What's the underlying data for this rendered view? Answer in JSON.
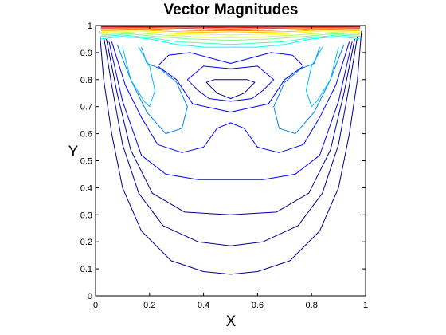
{
  "chart_data": {
    "type": "contour",
    "title": "Vector Magnitudes",
    "xlabel": "X",
    "ylabel": "Y",
    "xlim": [
      0,
      1
    ],
    "ylim": [
      0,
      1
    ],
    "x_ticks": [
      "0",
      "0.2",
      "0.4",
      "0.6",
      "0.8",
      "1"
    ],
    "y_ticks": [
      "0",
      "0.1",
      "0.2",
      "0.3",
      "0.4",
      "0.5",
      "0.6",
      "0.7",
      "0.8",
      "0.9",
      "1"
    ],
    "colormap": "jet",
    "colors": {
      "dark_blue": "#00008f",
      "blue": "#0000ff",
      "azure": "#0080ff",
      "cyan": "#00ffff",
      "green": "#80ff80",
      "yellow": "#ffff00",
      "orange": "#ff8000",
      "red": "#ff0000",
      "dark_red": "#800000"
    },
    "contours": [
      {
        "color": "#00008f",
        "points": [
          [
            0.015,
            0.98
          ],
          [
            0.03,
            0.8
          ],
          [
            0.06,
            0.6
          ],
          [
            0.1,
            0.4
          ],
          [
            0.17,
            0.24
          ],
          [
            0.28,
            0.13
          ],
          [
            0.4,
            0.09
          ],
          [
            0.5,
            0.08
          ],
          [
            0.6,
            0.09
          ],
          [
            0.72,
            0.13
          ],
          [
            0.83,
            0.24
          ],
          [
            0.9,
            0.4
          ],
          [
            0.94,
            0.6
          ],
          [
            0.97,
            0.8
          ],
          [
            0.985,
            0.98
          ]
        ]
      },
      {
        "color": "#00008f",
        "points": [
          [
            0.03,
            0.96
          ],
          [
            0.06,
            0.78
          ],
          [
            0.1,
            0.56
          ],
          [
            0.16,
            0.38
          ],
          [
            0.25,
            0.26
          ],
          [
            0.38,
            0.2
          ],
          [
            0.5,
            0.185
          ],
          [
            0.62,
            0.2
          ],
          [
            0.75,
            0.26
          ],
          [
            0.84,
            0.38
          ],
          [
            0.9,
            0.56
          ],
          [
            0.94,
            0.78
          ],
          [
            0.97,
            0.96
          ]
        ]
      },
      {
        "color": "#00008f",
        "points": [
          [
            0.04,
            0.95
          ],
          [
            0.08,
            0.75
          ],
          [
            0.13,
            0.54
          ],
          [
            0.21,
            0.38
          ],
          [
            0.33,
            0.31
          ],
          [
            0.5,
            0.3
          ],
          [
            0.67,
            0.31
          ],
          [
            0.79,
            0.38
          ],
          [
            0.87,
            0.54
          ],
          [
            0.92,
            0.75
          ],
          [
            0.96,
            0.95
          ]
        ]
      },
      {
        "color": "#0000ff",
        "points": [
          [
            0.05,
            0.94
          ],
          [
            0.1,
            0.72
          ],
          [
            0.17,
            0.52
          ],
          [
            0.26,
            0.45
          ],
          [
            0.38,
            0.43
          ],
          [
            0.5,
            0.43
          ],
          [
            0.62,
            0.43
          ],
          [
            0.74,
            0.45
          ],
          [
            0.83,
            0.52
          ],
          [
            0.9,
            0.72
          ],
          [
            0.95,
            0.94
          ]
        ]
      },
      {
        "color": "#0000ff",
        "points": [
          [
            0.06,
            0.94
          ],
          [
            0.11,
            0.78
          ],
          [
            0.17,
            0.66
          ],
          [
            0.23,
            0.56
          ],
          [
            0.32,
            0.53
          ],
          [
            0.4,
            0.55
          ],
          [
            0.45,
            0.62
          ],
          [
            0.5,
            0.64
          ],
          [
            0.55,
            0.62
          ],
          [
            0.6,
            0.55
          ],
          [
            0.68,
            0.53
          ],
          [
            0.77,
            0.56
          ],
          [
            0.83,
            0.66
          ],
          [
            0.89,
            0.78
          ],
          [
            0.94,
            0.94
          ]
        ]
      },
      {
        "color": "#0000ff",
        "points": [
          [
            0.23,
            0.85
          ],
          [
            0.27,
            0.89
          ],
          [
            0.35,
            0.9
          ],
          [
            0.5,
            0.86
          ],
          [
            0.65,
            0.9
          ],
          [
            0.73,
            0.89
          ],
          [
            0.77,
            0.85
          ],
          [
            0.7,
            0.8
          ],
          [
            0.64,
            0.71
          ],
          [
            0.5,
            0.68
          ],
          [
            0.36,
            0.71
          ],
          [
            0.3,
            0.8
          ],
          [
            0.23,
            0.85
          ]
        ]
      },
      {
        "color": "#0000ff",
        "points": [
          [
            0.34,
            0.8
          ],
          [
            0.4,
            0.85
          ],
          [
            0.5,
            0.84
          ],
          [
            0.6,
            0.85
          ],
          [
            0.66,
            0.8
          ],
          [
            0.62,
            0.76
          ],
          [
            0.58,
            0.73
          ],
          [
            0.5,
            0.72
          ],
          [
            0.42,
            0.73
          ],
          [
            0.38,
            0.76
          ],
          [
            0.34,
            0.8
          ]
        ]
      },
      {
        "color": "#00008f",
        "points": [
          [
            0.41,
            0.79
          ],
          [
            0.44,
            0.8
          ],
          [
            0.5,
            0.8
          ],
          [
            0.56,
            0.8
          ],
          [
            0.59,
            0.79
          ],
          [
            0.55,
            0.75
          ],
          [
            0.5,
            0.73
          ],
          [
            0.45,
            0.75
          ],
          [
            0.41,
            0.79
          ]
        ]
      },
      {
        "color": "#0080ff",
        "points": [
          [
            0.08,
            0.93
          ],
          [
            0.13,
            0.8
          ],
          [
            0.19,
            0.68
          ],
          [
            0.26,
            0.6
          ],
          [
            0.32,
            0.62
          ],
          [
            0.34,
            0.7
          ],
          [
            0.3,
            0.79
          ],
          [
            0.24,
            0.84
          ],
          [
            0.19,
            0.86
          ],
          [
            0.17,
            0.92
          ]
        ]
      },
      {
        "color": "#0080ff",
        "points": [
          [
            0.92,
            0.93
          ],
          [
            0.87,
            0.8
          ],
          [
            0.81,
            0.68
          ],
          [
            0.74,
            0.6
          ],
          [
            0.68,
            0.62
          ],
          [
            0.66,
            0.7
          ],
          [
            0.7,
            0.79
          ],
          [
            0.76,
            0.84
          ],
          [
            0.81,
            0.86
          ],
          [
            0.83,
            0.92
          ]
        ]
      },
      {
        "color": "#00c0ff",
        "points": [
          [
            0.1,
            0.92
          ],
          [
            0.13,
            0.8
          ],
          [
            0.18,
            0.72
          ],
          [
            0.2,
            0.7
          ],
          [
            0.22,
            0.76
          ],
          [
            0.2,
            0.85
          ],
          [
            0.16,
            0.92
          ]
        ]
      },
      {
        "color": "#00c0ff",
        "points": [
          [
            0.9,
            0.92
          ],
          [
            0.87,
            0.8
          ],
          [
            0.82,
            0.72
          ],
          [
            0.8,
            0.7
          ],
          [
            0.78,
            0.76
          ],
          [
            0.8,
            0.85
          ],
          [
            0.84,
            0.92
          ]
        ]
      },
      {
        "color": "#00ffff",
        "points": [
          [
            0.02,
            0.95
          ],
          [
            0.1,
            0.96
          ],
          [
            0.2,
            0.95
          ],
          [
            0.3,
            0.93
          ],
          [
            0.4,
            0.92
          ],
          [
            0.5,
            0.92
          ],
          [
            0.6,
            0.92
          ],
          [
            0.7,
            0.93
          ],
          [
            0.8,
            0.95
          ],
          [
            0.9,
            0.96
          ],
          [
            0.98,
            0.95
          ]
        ]
      },
      {
        "color": "#40ffc0",
        "points": [
          [
            0.02,
            0.96
          ],
          [
            0.1,
            0.965
          ],
          [
            0.2,
            0.955
          ],
          [
            0.3,
            0.94
          ],
          [
            0.4,
            0.935
          ],
          [
            0.5,
            0.93
          ],
          [
            0.6,
            0.935
          ],
          [
            0.7,
            0.94
          ],
          [
            0.8,
            0.955
          ],
          [
            0.9,
            0.965
          ],
          [
            0.98,
            0.96
          ]
        ]
      },
      {
        "color": "#80ff80",
        "points": [
          [
            0.02,
            0.965
          ],
          [
            0.12,
            0.97
          ],
          [
            0.22,
            0.96
          ],
          [
            0.35,
            0.95
          ],
          [
            0.5,
            0.945
          ],
          [
            0.65,
            0.95
          ],
          [
            0.78,
            0.96
          ],
          [
            0.88,
            0.97
          ],
          [
            0.98,
            0.965
          ]
        ]
      },
      {
        "color": "#c0ff40",
        "points": [
          [
            0.02,
            0.97
          ],
          [
            0.12,
            0.975
          ],
          [
            0.25,
            0.965
          ],
          [
            0.38,
            0.958
          ],
          [
            0.5,
            0.955
          ],
          [
            0.62,
            0.958
          ],
          [
            0.75,
            0.965
          ],
          [
            0.88,
            0.975
          ],
          [
            0.98,
            0.97
          ]
        ]
      },
      {
        "color": "#ffff00",
        "points": [
          [
            0.02,
            0.975
          ],
          [
            0.15,
            0.98
          ],
          [
            0.3,
            0.97
          ],
          [
            0.5,
            0.965
          ],
          [
            0.7,
            0.97
          ],
          [
            0.85,
            0.98
          ],
          [
            0.98,
            0.975
          ]
        ]
      },
      {
        "color": "#ffc000",
        "points": [
          [
            0.02,
            0.98
          ],
          [
            0.15,
            0.984
          ],
          [
            0.3,
            0.977
          ],
          [
            0.5,
            0.973
          ],
          [
            0.7,
            0.977
          ],
          [
            0.85,
            0.984
          ],
          [
            0.98,
            0.98
          ]
        ]
      },
      {
        "color": "#ff8000",
        "points": [
          [
            0.02,
            0.985
          ],
          [
            0.2,
            0.988
          ],
          [
            0.35,
            0.982
          ],
          [
            0.5,
            0.98
          ],
          [
            0.65,
            0.982
          ],
          [
            0.8,
            0.988
          ],
          [
            0.98,
            0.985
          ]
        ]
      },
      {
        "color": "#ff4000",
        "points": [
          [
            0.02,
            0.99
          ],
          [
            0.2,
            0.992
          ],
          [
            0.5,
            0.987
          ],
          [
            0.8,
            0.992
          ],
          [
            0.98,
            0.99
          ]
        ]
      },
      {
        "color": "#ff0000",
        "points": [
          [
            0.02,
            0.994
          ],
          [
            0.25,
            0.995
          ],
          [
            0.5,
            0.992
          ],
          [
            0.75,
            0.995
          ],
          [
            0.98,
            0.994
          ]
        ]
      },
      {
        "color": "#800000",
        "points": [
          [
            0.02,
            0.997
          ],
          [
            0.5,
            0.996
          ],
          [
            0.98,
            0.997
          ]
        ]
      }
    ]
  }
}
